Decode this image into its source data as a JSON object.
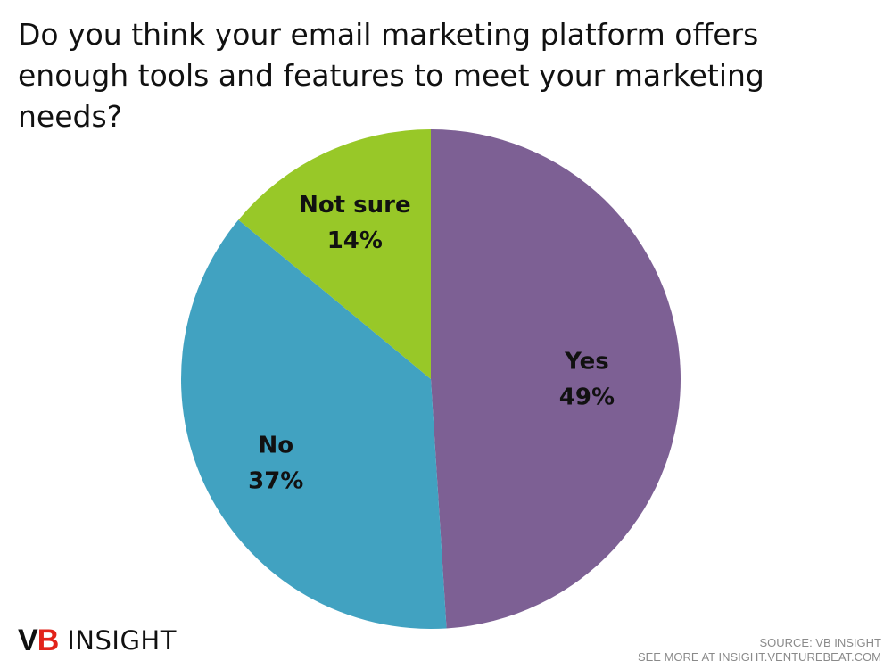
{
  "title": "Do you think your email marketing platform offers enough tools and features to meet your marketing needs?",
  "chart_data": {
    "type": "pie",
    "start_angle_deg": 0,
    "direction": "clockwise",
    "slices": [
      {
        "name": "Yes",
        "value": 49,
        "label": "49%",
        "color": "#7d6094"
      },
      {
        "name": "No",
        "value": 37,
        "label": "37%",
        "color": "#41a2c1"
      },
      {
        "name": "Not sure",
        "value": 14,
        "label": "14%",
        "color": "#98c828"
      }
    ]
  },
  "logo": {
    "prefix": "V",
    "accent": "B",
    "text": "INSIGHT"
  },
  "source": {
    "line1": "SOURCE: VB INSIGHT",
    "line2": "SEE MORE AT INSIGHT.VENTUREBEAT.COM"
  }
}
